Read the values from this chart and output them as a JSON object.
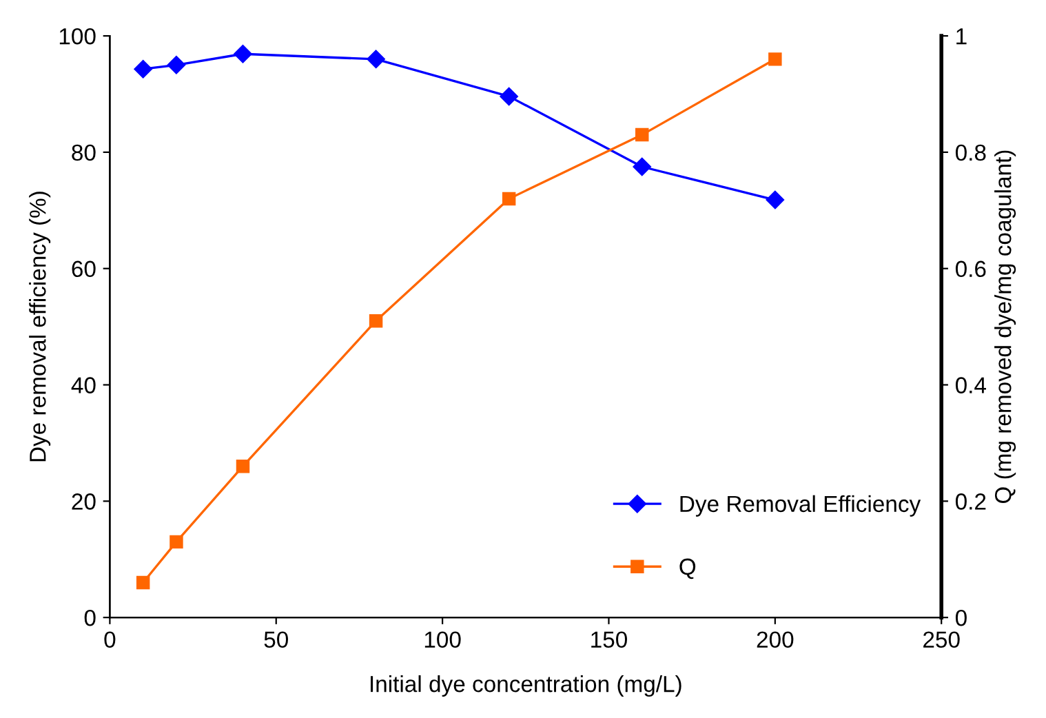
{
  "chart_data": {
    "type": "line",
    "xlabel": "Initial dye concentration (mg/L)",
    "ylabel": "Dye removal efficiency (%)",
    "y2label": "Q (mg removed dye/mg coagulant)",
    "x": [
      10,
      20,
      40,
      80,
      120,
      160,
      200
    ],
    "series": [
      {
        "name": "Dye Removal Efficiency",
        "color": "#0000ff",
        "marker": "diamond",
        "values": [
          94.3,
          95.0,
          96.9,
          96.0,
          89.6,
          77.5,
          71.8
        ]
      },
      {
        "name": "Q",
        "color": "#ff6600",
        "marker": "square",
        "axis": "y2",
        "values": [
          0.06,
          0.13,
          0.26,
          0.51,
          0.72,
          0.83,
          0.96
        ]
      }
    ],
    "xlim": [
      0,
      250
    ],
    "xticks": [
      0,
      50,
      100,
      150,
      200,
      250
    ],
    "ylim": [
      0,
      100
    ],
    "yticks": [
      0,
      20,
      40,
      60,
      80,
      100
    ],
    "y2lim": [
      0,
      1
    ],
    "y2ticks": [
      0,
      0.2,
      0.4,
      0.6,
      0.8,
      1
    ],
    "legend": "bottom right",
    "grid": false
  }
}
